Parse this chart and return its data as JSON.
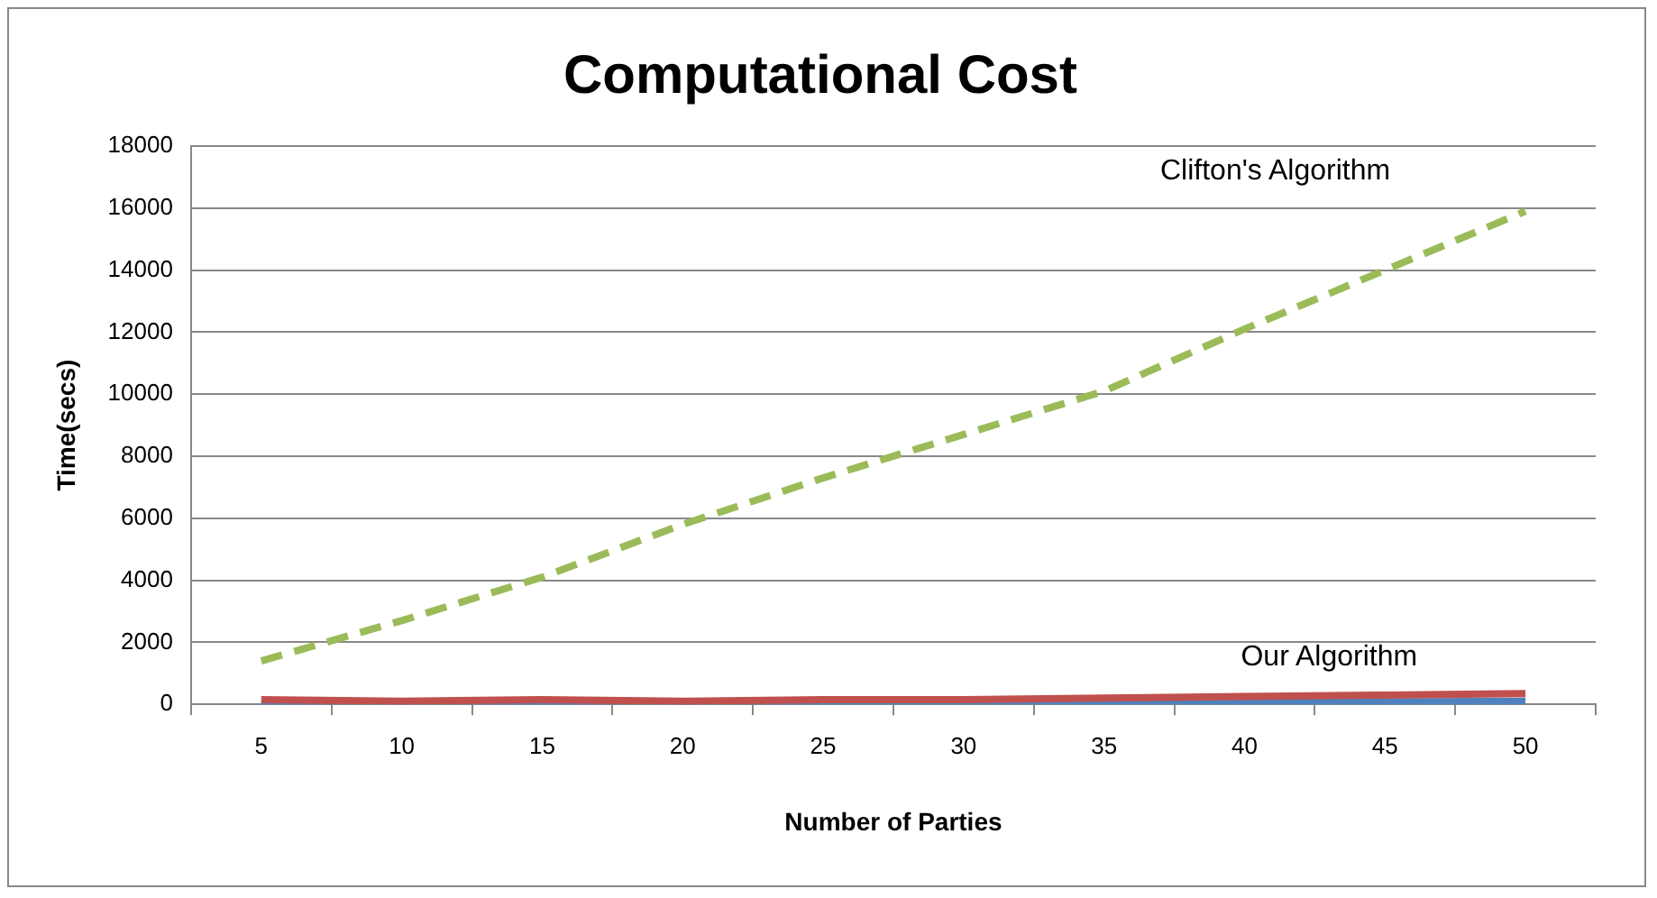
{
  "chart_data": {
    "type": "line",
    "title": "Computational Cost",
    "xlabel": "Number of Parties",
    "ylabel": "Time(secs)",
    "categories": [
      "5",
      "10",
      "15",
      "20",
      "25",
      "30",
      "35",
      "40",
      "45",
      "50"
    ],
    "series": [
      {
        "name": "Clifton's Algorithm",
        "color": "#9bbb59",
        "line_style": "dashed",
        "values": [
          1400,
          2700,
          4100,
          5800,
          7300,
          8700,
          10100,
          12100,
          14000,
          15900
        ]
      },
      {
        "name": "Our Algorithm",
        "color": "#c0504d",
        "line_style": "solid",
        "values": [
          150,
          100,
          150,
          100,
          150,
          150,
          200,
          250,
          300,
          350
        ]
      },
      {
        "color": "#4f81bd",
        "line_style": "solid",
        "values": [
          20,
          20,
          30,
          30,
          40,
          50,
          60,
          70,
          80,
          100
        ]
      }
    ],
    "ylim": [
      0,
      18000
    ],
    "yticks": [
      0,
      2000,
      4000,
      6000,
      8000,
      10000,
      12000,
      14000,
      16000,
      18000
    ],
    "grid": "y",
    "legend": false,
    "marker": "none"
  }
}
